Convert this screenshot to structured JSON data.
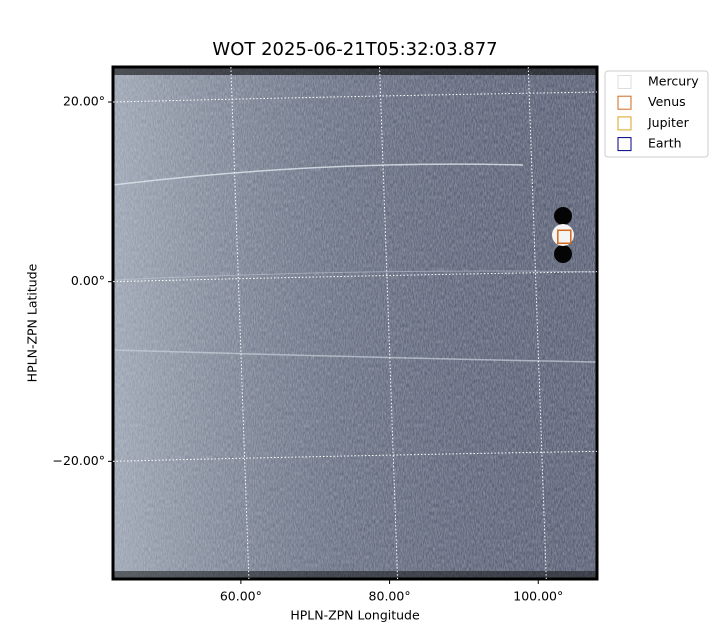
{
  "chart_data": {
    "type": "image",
    "title": "WOT 2025-06-21T05:32:03.877",
    "xlabel": "HPLN-ZPN Longitude",
    "ylabel": "HPLN-ZPN Latitude",
    "xlim": [
      42.8,
      107.9
    ],
    "ylim": [
      -33.1,
      23.9
    ],
    "xticks": [
      {
        "value": 60,
        "label": "60.00°"
      },
      {
        "value": 80,
        "label": "80.00°"
      },
      {
        "value": 100,
        "label": "100.00°"
      }
    ],
    "yticks": [
      {
        "value": 20,
        "label": "20.00°"
      },
      {
        "value": 0,
        "label": "0.00°"
      },
      {
        "value": -20,
        "label": "−20.00°"
      }
    ],
    "grid": true,
    "legend": "outside upper right",
    "series": [
      {
        "name": "Mercury",
        "color": "#dddddd",
        "x": [],
        "values": []
      },
      {
        "name": "Venus",
        "color": "#d2691e",
        "x": [
          103.5
        ],
        "values": [
          5.0
        ]
      },
      {
        "name": "Jupiter",
        "color": "#daa520",
        "x": [],
        "values": []
      },
      {
        "name": "Earth",
        "color": "#000080",
        "x": [],
        "values": []
      }
    ]
  }
}
